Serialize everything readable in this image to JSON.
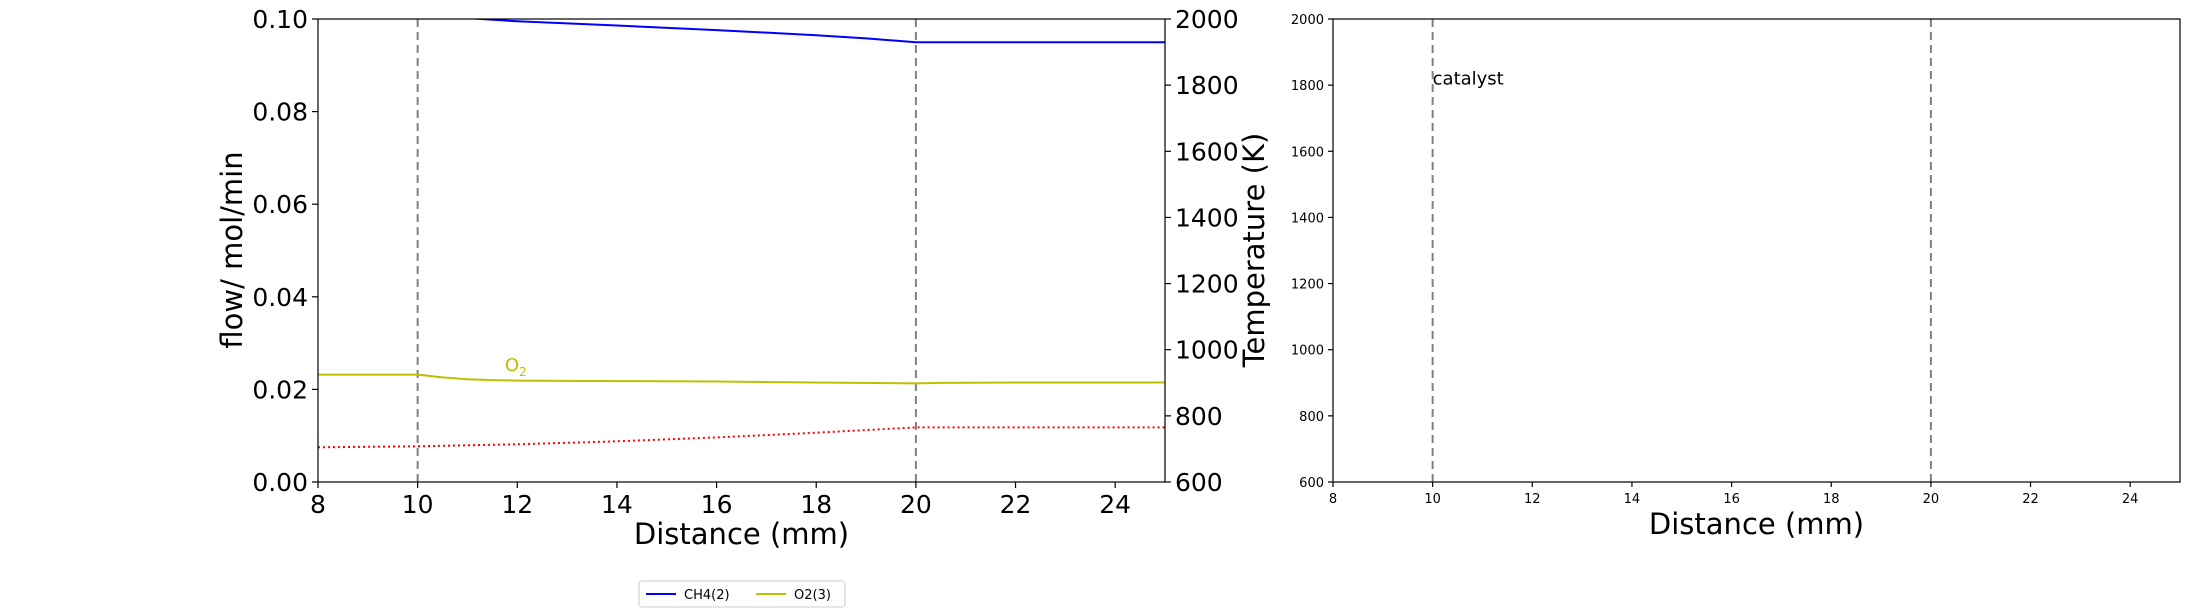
{
  "chart_data": [
    {
      "type": "line",
      "xlabel": "Distance (mm)",
      "ylabel": "flow/ mol/min",
      "y2label": "Temperature (K)",
      "xlim": [
        8,
        25
      ],
      "ylim": [
        0,
        0.1
      ],
      "y2lim": [
        600,
        2000
      ],
      "xticks": [
        "8",
        "10",
        "12",
        "14",
        "16",
        "18",
        "20",
        "22",
        "24"
      ],
      "yticks": [
        "0.00",
        "0.02",
        "0.04",
        "0.06",
        "0.08",
        "0.10"
      ],
      "y2ticks": [
        "600",
        "800",
        "1000",
        "1200",
        "1400",
        "1600",
        "1800",
        "2000"
      ],
      "vlines": [
        10,
        20
      ],
      "series": [
        {
          "name": "CH4(2)",
          "color": "#0000ff",
          "style": "solid",
          "axis": "left",
          "x": [
            8,
            10,
            11,
            12,
            14,
            16,
            18,
            19,
            20,
            21,
            22,
            24,
            25
          ],
          "y": [
            0.102,
            0.1012,
            0.1002,
            0.0995,
            0.0986,
            0.0976,
            0.0965,
            0.0958,
            0.095,
            0.095,
            0.095,
            0.095,
            0.095
          ]
        },
        {
          "name": "O2(3)",
          "color": "#bfbf00",
          "style": "solid",
          "axis": "left",
          "x": [
            8,
            9,
            10,
            10.5,
            11,
            11.5,
            12,
            14,
            16,
            18,
            20,
            20.5,
            22,
            24,
            25
          ],
          "y": [
            0.0232,
            0.0232,
            0.0232,
            0.0226,
            0.0222,
            0.022,
            0.0219,
            0.0218,
            0.0217,
            0.0215,
            0.0213,
            0.0214,
            0.0215,
            0.0215,
            0.0215
          ]
        },
        {
          "color": "#ff0000",
          "style": "dotted",
          "axis": "right",
          "x": [
            8,
            10,
            12,
            14,
            16,
            18,
            20,
            22,
            24,
            25
          ],
          "y": [
            705,
            708,
            714,
            723,
            735,
            749,
            765,
            765,
            765,
            765
          ]
        }
      ],
      "annotations": [
        {
          "text": "O",
          "sub": "2",
          "x": 11.75,
          "y": 0.024,
          "color": "#bfbf00"
        }
      ],
      "legend": {
        "placement": "bottom-center",
        "entries": [
          "CH4(2)",
          "O2(3)"
        ]
      }
    },
    {
      "type": "line",
      "xlabel": "Distance (mm)",
      "ylabel": "",
      "xlim": [
        8,
        25
      ],
      "ylim": [
        600,
        2000
      ],
      "xticks": [
        "8",
        "10",
        "12",
        "14",
        "16",
        "18",
        "20",
        "22",
        "24"
      ],
      "yticks": [
        "600",
        "800",
        "1000",
        "1200",
        "1400",
        "1600",
        "1800",
        "2000"
      ],
      "vlines": [
        10,
        20
      ],
      "annotations": [
        {
          "text": "catalyst",
          "x": 10.0,
          "y": 1820,
          "color": "#000000"
        }
      ],
      "series": []
    }
  ]
}
